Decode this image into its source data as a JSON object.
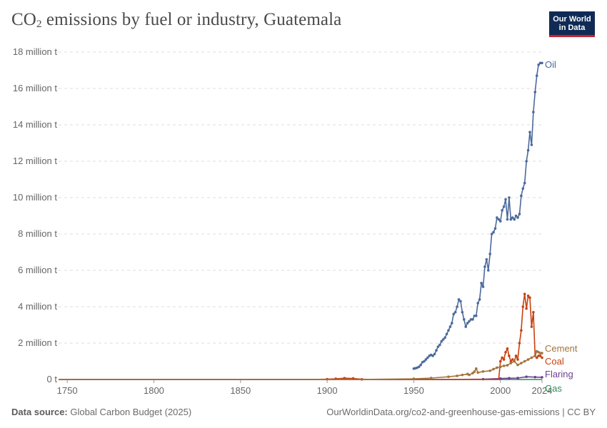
{
  "header": {
    "title_prefix": "CO",
    "title_sub": "2",
    "title_suffix": " emissions by fuel or industry, Guatemala",
    "logo_line1": "Our World",
    "logo_line2": "in Data"
  },
  "footer": {
    "source_label": "Data source:",
    "source_text": " Global Carbon Budget (2025)",
    "url_text": "OurWorldinData.org/co2-and-greenhouse-gas-emissions | CC BY"
  },
  "chart_data": {
    "type": "line",
    "title": "CO₂ emissions by fuel or industry, Guatemala",
    "xlabel": "",
    "ylabel": "",
    "xlim": [
      1745,
      2024
    ],
    "ylim": [
      0,
      18000000
    ],
    "x_ticks": [
      1750,
      1800,
      1850,
      1900,
      1950,
      2000,
      2024
    ],
    "x_tick_labels": [
      "1750",
      "1800",
      "1850",
      "1900",
      "1950",
      "2000",
      "2024"
    ],
    "y_ticks": [
      0,
      2000000,
      4000000,
      6000000,
      8000000,
      10000000,
      12000000,
      14000000,
      16000000,
      18000000
    ],
    "y_tick_labels": [
      "0 t",
      "2 million t",
      "4 million t",
      "6 million t",
      "8 million t",
      "10 million t",
      "12 million t",
      "14 million t",
      "16 million t",
      "18 million t"
    ],
    "grid": "horizontal dashed",
    "legend": "inline labels at line ends (right)",
    "series": [
      {
        "name": "Oil",
        "color": "#4c6a9c",
        "points": [
          [
            1950,
            600000
          ],
          [
            1951,
            620000
          ],
          [
            1952,
            650000
          ],
          [
            1953,
            700000
          ],
          [
            1954,
            800000
          ],
          [
            1955,
            950000
          ],
          [
            1956,
            1000000
          ],
          [
            1957,
            1100000
          ],
          [
            1958,
            1200000
          ],
          [
            1959,
            1300000
          ],
          [
            1960,
            1350000
          ],
          [
            1961,
            1300000
          ],
          [
            1962,
            1400000
          ],
          [
            1963,
            1600000
          ],
          [
            1964,
            1800000
          ],
          [
            1965,
            1900000
          ],
          [
            1966,
            2100000
          ],
          [
            1967,
            2200000
          ],
          [
            1968,
            2300000
          ],
          [
            1969,
            2500000
          ],
          [
            1970,
            2700000
          ],
          [
            1971,
            2900000
          ],
          [
            1972,
            3100000
          ],
          [
            1973,
            3600000
          ],
          [
            1974,
            3700000
          ],
          [
            1975,
            4000000
          ],
          [
            1976,
            4400000
          ],
          [
            1977,
            4300000
          ],
          [
            1978,
            3700000
          ],
          [
            1979,
            3300000
          ],
          [
            1980,
            2900000
          ],
          [
            1981,
            3100000
          ],
          [
            1982,
            3200000
          ],
          [
            1983,
            3300000
          ],
          [
            1984,
            3300000
          ],
          [
            1985,
            3500000
          ],
          [
            1986,
            3500000
          ],
          [
            1987,
            4200000
          ],
          [
            1988,
            4400000
          ],
          [
            1989,
            5300000
          ],
          [
            1990,
            5100000
          ],
          [
            1991,
            6200000
          ],
          [
            1992,
            6600000
          ],
          [
            1993,
            6000000
          ],
          [
            1994,
            6900000
          ],
          [
            1995,
            8000000
          ],
          [
            1996,
            8100000
          ],
          [
            1997,
            8300000
          ],
          [
            1998,
            8900000
          ],
          [
            1999,
            8800000
          ],
          [
            2000,
            8700000
          ],
          [
            2001,
            9300000
          ],
          [
            2002,
            9500000
          ],
          [
            2003,
            9900000
          ],
          [
            2004,
            8800000
          ],
          [
            2005,
            10000000
          ],
          [
            2006,
            8800000
          ],
          [
            2007,
            8900000
          ],
          [
            2008,
            8800000
          ],
          [
            2009,
            9000000
          ],
          [
            2010,
            8900000
          ],
          [
            2011,
            9100000
          ],
          [
            2012,
            10100000
          ],
          [
            2013,
            10500000
          ],
          [
            2014,
            10800000
          ],
          [
            2015,
            12000000
          ],
          [
            2016,
            12600000
          ],
          [
            2017,
            13600000
          ],
          [
            2018,
            12900000
          ],
          [
            2019,
            14700000
          ],
          [
            2020,
            15800000
          ],
          [
            2021,
            16700000
          ],
          [
            2022,
            17300000
          ],
          [
            2023,
            17400000
          ],
          [
            2024,
            17400000
          ]
        ]
      },
      {
        "name": "Cement",
        "color": "#a2743b",
        "points": [
          [
            1745,
            0
          ],
          [
            1920,
            0
          ],
          [
            1950,
            40000
          ],
          [
            1960,
            80000
          ],
          [
            1970,
            150000
          ],
          [
            1975,
            200000
          ],
          [
            1978,
            250000
          ],
          [
            1981,
            300000
          ],
          [
            1982,
            250000
          ],
          [
            1984,
            350000
          ],
          [
            1985,
            430000
          ],
          [
            1986,
            600000
          ],
          [
            1987,
            380000
          ],
          [
            1990,
            440000
          ],
          [
            1994,
            480000
          ],
          [
            1996,
            570000
          ],
          [
            1998,
            650000
          ],
          [
            2000,
            700000
          ],
          [
            2002,
            750000
          ],
          [
            2004,
            780000
          ],
          [
            2006,
            900000
          ],
          [
            2008,
            1000000
          ],
          [
            2010,
            800000
          ],
          [
            2012,
            900000
          ],
          [
            2014,
            1000000
          ],
          [
            2016,
            1100000
          ],
          [
            2018,
            1200000
          ],
          [
            2020,
            1300000
          ],
          [
            2021,
            1550000
          ],
          [
            2022,
            1500000
          ],
          [
            2023,
            1450000
          ],
          [
            2024,
            1450000
          ]
        ]
      },
      {
        "name": "Coal",
        "color": "#c74211",
        "points": [
          [
            1745,
            0
          ],
          [
            1890,
            0
          ],
          [
            1900,
            20000
          ],
          [
            1905,
            40000
          ],
          [
            1910,
            70000
          ],
          [
            1915,
            60000
          ],
          [
            1920,
            10000
          ],
          [
            1930,
            0
          ],
          [
            1999,
            0
          ],
          [
            2000,
            1000000
          ],
          [
            2001,
            1200000
          ],
          [
            2002,
            1100000
          ],
          [
            2003,
            1500000
          ],
          [
            2004,
            1700000
          ],
          [
            2005,
            1300000
          ],
          [
            2006,
            1000000
          ],
          [
            2007,
            1100000
          ],
          [
            2008,
            1000000
          ],
          [
            2009,
            1300000
          ],
          [
            2010,
            1100000
          ],
          [
            2011,
            2000000
          ],
          [
            2012,
            2700000
          ],
          [
            2013,
            4000000
          ],
          [
            2014,
            4700000
          ],
          [
            2015,
            3900000
          ],
          [
            2016,
            4600000
          ],
          [
            2017,
            4500000
          ],
          [
            2018,
            2900000
          ],
          [
            2019,
            3700000
          ],
          [
            2020,
            1300000
          ],
          [
            2021,
            1200000
          ],
          [
            2022,
            1300000
          ],
          [
            2023,
            1300000
          ],
          [
            2024,
            1200000
          ]
        ]
      },
      {
        "name": "Flaring",
        "color": "#6d3e91",
        "points": [
          [
            1745,
            0
          ],
          [
            1970,
            0
          ],
          [
            1990,
            20000
          ],
          [
            2000,
            50000
          ],
          [
            2005,
            70000
          ],
          [
            2010,
            80000
          ],
          [
            2015,
            150000
          ],
          [
            2020,
            130000
          ],
          [
            2024,
            120000
          ]
        ]
      },
      {
        "name": "Gas",
        "color": "#2e8b57",
        "points": [
          [
            1745,
            0
          ],
          [
            2024,
            0
          ]
        ]
      }
    ]
  }
}
